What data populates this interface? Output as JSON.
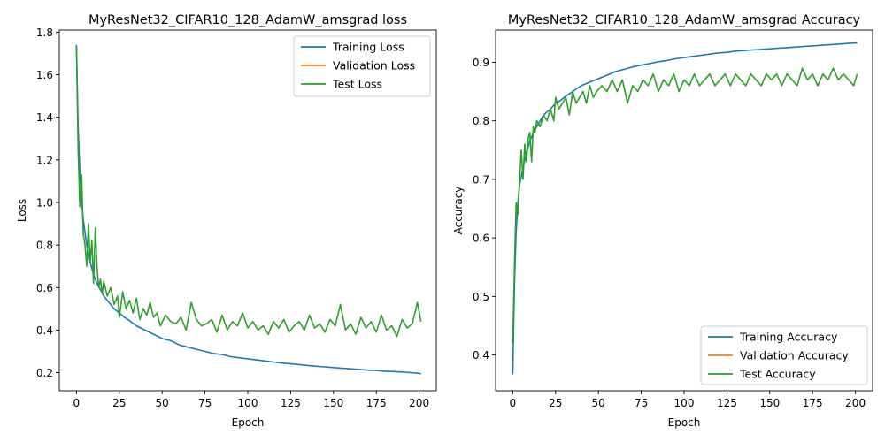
{
  "figure": {
    "background": "#ffffff"
  },
  "chart_data": [
    {
      "type": "line",
      "title": "MyResNet32_CIFAR10_128_AdamW_amsgrad loss",
      "xlabel": "Epoch",
      "ylabel": "Loss",
      "xlim": [
        -10,
        210
      ],
      "ylim": [
        0.115,
        1.81
      ],
      "xticks": [
        0,
        25,
        50,
        75,
        100,
        125,
        150,
        175,
        200
      ],
      "yticks": [
        0.2,
        0.4,
        0.6,
        0.8,
        1.0,
        1.2,
        1.4,
        1.6,
        1.8
      ],
      "ytick_labels": [
        "0.2",
        "0.4",
        "0.6",
        "0.8",
        "1.0",
        "1.2",
        "1.4",
        "1.6",
        "1.8"
      ],
      "grid": false,
      "legend": "upper right",
      "series": [
        {
          "name": "Training Loss",
          "color": "#1f77b4",
          "x": [
            0,
            1,
            2,
            3,
            4,
            5,
            6,
            7,
            8,
            9,
            10,
            12,
            14,
            16,
            18,
            20,
            22,
            25,
            28,
            30,
            35,
            40,
            45,
            50,
            55,
            60,
            65,
            70,
            75,
            80,
            85,
            90,
            95,
            100,
            105,
            110,
            115,
            120,
            125,
            130,
            135,
            140,
            145,
            150,
            155,
            160,
            165,
            170,
            175,
            180,
            185,
            190,
            195,
            200,
            201
          ],
          "y": [
            1.74,
            1.35,
            1.15,
            1.01,
            0.92,
            0.86,
            0.8,
            0.76,
            0.72,
            0.69,
            0.66,
            0.62,
            0.59,
            0.56,
            0.54,
            0.52,
            0.5,
            0.48,
            0.46,
            0.45,
            0.42,
            0.4,
            0.38,
            0.36,
            0.35,
            0.33,
            0.32,
            0.31,
            0.3,
            0.29,
            0.285,
            0.275,
            0.27,
            0.265,
            0.26,
            0.255,
            0.25,
            0.245,
            0.242,
            0.238,
            0.234,
            0.23,
            0.227,
            0.224,
            0.221,
            0.218,
            0.215,
            0.212,
            0.21,
            0.207,
            0.205,
            0.203,
            0.2,
            0.197,
            0.194
          ]
        },
        {
          "name": "Validation Loss",
          "color": "#ff7f0e",
          "x": [],
          "y": []
        },
        {
          "name": "Test Loss",
          "color": "#2ca02c",
          "x": [
            0,
            1,
            2,
            3,
            4,
            5,
            6,
            7,
            8,
            9,
            10,
            11,
            12,
            13,
            14,
            15,
            16,
            18,
            20,
            22,
            24,
            25,
            27,
            29,
            31,
            33,
            35,
            37,
            39,
            41,
            43,
            45,
            47,
            49,
            52,
            55,
            58,
            61,
            64,
            67,
            70,
            73,
            76,
            79,
            82,
            85,
            88,
            91,
            94,
            97,
            100,
            103,
            106,
            109,
            112,
            115,
            118,
            121,
            124,
            127,
            130,
            133,
            136,
            139,
            142,
            145,
            148,
            151,
            154,
            157,
            160,
            163,
            166,
            169,
            172,
            175,
            178,
            181,
            184,
            187,
            190,
            193,
            196,
            199,
            201
          ],
          "y": [
            1.73,
            1.25,
            0.98,
            1.13,
            0.85,
            0.8,
            0.7,
            0.9,
            0.72,
            0.82,
            0.62,
            0.88,
            0.7,
            0.6,
            0.64,
            0.57,
            0.63,
            0.56,
            0.6,
            0.52,
            0.56,
            0.46,
            0.58,
            0.5,
            0.54,
            0.48,
            0.55,
            0.45,
            0.5,
            0.47,
            0.53,
            0.46,
            0.48,
            0.42,
            0.47,
            0.44,
            0.43,
            0.46,
            0.4,
            0.53,
            0.45,
            0.42,
            0.43,
            0.45,
            0.39,
            0.47,
            0.4,
            0.44,
            0.42,
            0.48,
            0.41,
            0.44,
            0.4,
            0.42,
            0.38,
            0.44,
            0.41,
            0.45,
            0.39,
            0.42,
            0.44,
            0.4,
            0.47,
            0.41,
            0.43,
            0.39,
            0.45,
            0.42,
            0.52,
            0.4,
            0.43,
            0.38,
            0.46,
            0.41,
            0.44,
            0.39,
            0.47,
            0.4,
            0.42,
            0.37,
            0.45,
            0.41,
            0.43,
            0.53,
            0.44
          ]
        }
      ]
    },
    {
      "type": "line",
      "title": "MyResNet32_CIFAR10_128_AdamW_amsgrad Accuracy",
      "xlabel": "Epoch",
      "ylabel": "Accuracy",
      "xlim": [
        -10,
        210
      ],
      "ylim": [
        0.339,
        0.955
      ],
      "xticks": [
        0,
        25,
        50,
        75,
        100,
        125,
        150,
        175,
        200
      ],
      "yticks": [
        0.4,
        0.5,
        0.6,
        0.7,
        0.8,
        0.9
      ],
      "ytick_labels": [
        "0.4",
        "0.5",
        "0.6",
        "0.7",
        "0.8",
        "0.9"
      ],
      "grid": false,
      "legend": "lower right",
      "series": [
        {
          "name": "Training Accuracy",
          "color": "#1f77b4",
          "x": [
            0,
            1,
            2,
            3,
            4,
            5,
            6,
            8,
            10,
            12,
            14,
            16,
            18,
            20,
            22,
            25,
            28,
            30,
            35,
            40,
            45,
            50,
            55,
            60,
            65,
            70,
            75,
            80,
            85,
            90,
            95,
            100,
            105,
            110,
            115,
            120,
            125,
            130,
            135,
            140,
            145,
            150,
            155,
            160,
            165,
            170,
            175,
            180,
            185,
            190,
            195,
            200,
            201
          ],
          "y": [
            0.367,
            0.52,
            0.61,
            0.66,
            0.69,
            0.705,
            0.72,
            0.745,
            0.765,
            0.78,
            0.79,
            0.8,
            0.81,
            0.815,
            0.82,
            0.83,
            0.835,
            0.84,
            0.85,
            0.86,
            0.866,
            0.872,
            0.878,
            0.884,
            0.888,
            0.892,
            0.895,
            0.898,
            0.901,
            0.903,
            0.906,
            0.908,
            0.91,
            0.912,
            0.914,
            0.916,
            0.917,
            0.919,
            0.92,
            0.921,
            0.922,
            0.923,
            0.924,
            0.925,
            0.926,
            0.927,
            0.928,
            0.929,
            0.93,
            0.931,
            0.932,
            0.933,
            0.933
          ]
        },
        {
          "name": "Validation Accuracy",
          "color": "#ff7f0e",
          "x": [],
          "y": []
        },
        {
          "name": "Test Accuracy",
          "color": "#2ca02c",
          "x": [
            0,
            1,
            2,
            3,
            4,
            5,
            6,
            7,
            8,
            9,
            10,
            11,
            12,
            13,
            14,
            16,
            18,
            20,
            22,
            24,
            25,
            27,
            29,
            31,
            33,
            35,
            37,
            39,
            41,
            43,
            45,
            47,
            49,
            52,
            55,
            58,
            61,
            64,
            67,
            70,
            73,
            76,
            79,
            82,
            85,
            88,
            91,
            94,
            97,
            100,
            103,
            106,
            109,
            112,
            115,
            118,
            121,
            124,
            127,
            130,
            133,
            136,
            139,
            142,
            145,
            148,
            151,
            154,
            157,
            160,
            163,
            166,
            169,
            172,
            175,
            178,
            181,
            184,
            187,
            190,
            193,
            196,
            199,
            201
          ],
          "y": [
            0.42,
            0.55,
            0.66,
            0.64,
            0.7,
            0.75,
            0.7,
            0.76,
            0.73,
            0.77,
            0.78,
            0.73,
            0.79,
            0.78,
            0.8,
            0.79,
            0.81,
            0.8,
            0.82,
            0.8,
            0.84,
            0.82,
            0.83,
            0.84,
            0.81,
            0.85,
            0.83,
            0.84,
            0.85,
            0.83,
            0.86,
            0.84,
            0.85,
            0.86,
            0.85,
            0.87,
            0.85,
            0.87,
            0.83,
            0.86,
            0.85,
            0.87,
            0.86,
            0.88,
            0.85,
            0.87,
            0.86,
            0.88,
            0.85,
            0.87,
            0.86,
            0.88,
            0.86,
            0.87,
            0.88,
            0.86,
            0.87,
            0.88,
            0.86,
            0.88,
            0.87,
            0.86,
            0.88,
            0.87,
            0.86,
            0.88,
            0.87,
            0.88,
            0.86,
            0.88,
            0.87,
            0.86,
            0.89,
            0.87,
            0.88,
            0.86,
            0.88,
            0.87,
            0.89,
            0.87,
            0.88,
            0.87,
            0.86,
            0.88
          ]
        }
      ]
    }
  ]
}
